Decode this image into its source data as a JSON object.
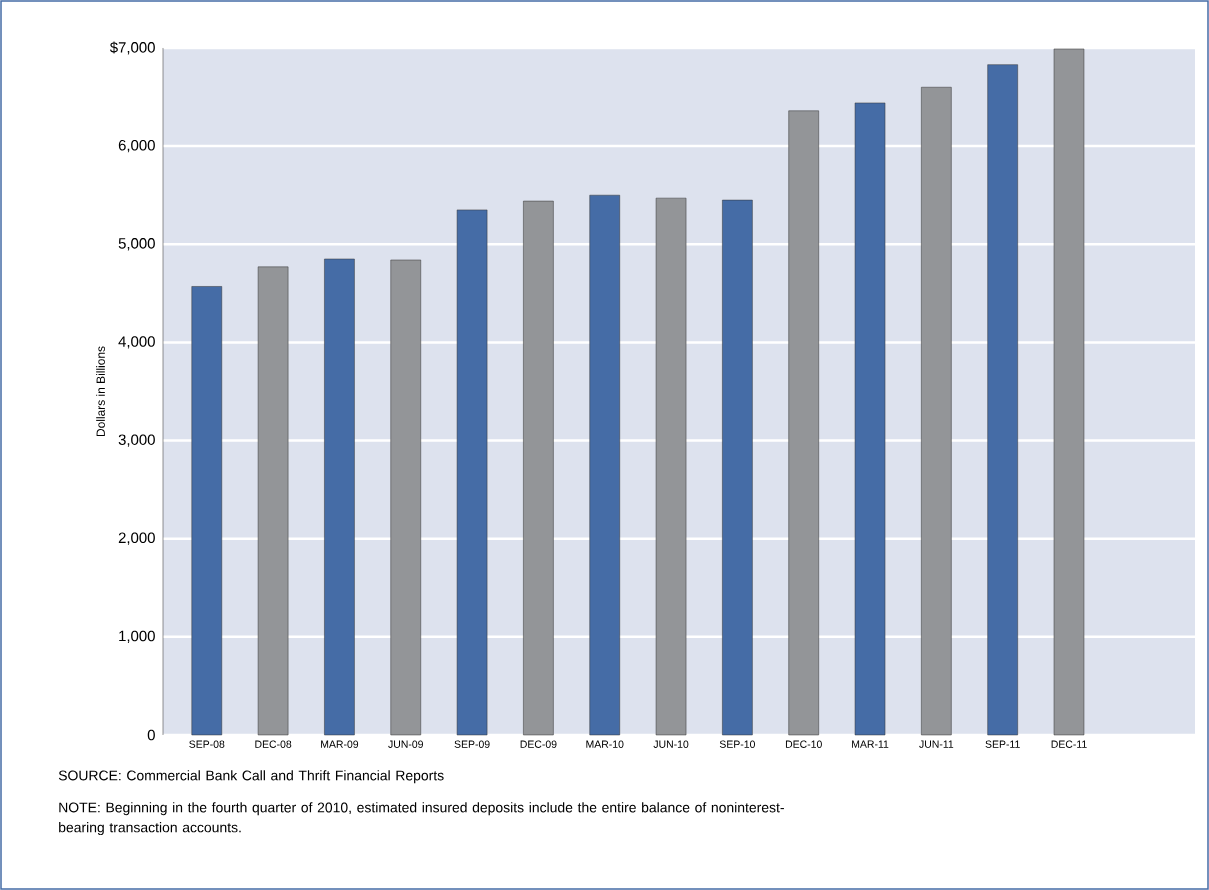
{
  "chart_data": {
    "type": "bar",
    "ylabel": "Dollars in Billions",
    "categories": [
      "SEP-08",
      "DEC-08",
      "MAR-09",
      "JUN-09",
      "SEP-09",
      "DEC-09",
      "MAR-10",
      "JUN-10",
      "SEP-10",
      "DEC-10",
      "MAR-11",
      "JUN-11",
      "SEP-11",
      "DEC-11"
    ],
    "values": [
      4570,
      4770,
      4850,
      4840,
      5350,
      5440,
      5500,
      5470,
      5450,
      6360,
      6440,
      6600,
      6830,
      6990
    ],
    "colors": [
      "#456ca6",
      "#939598",
      "#456ca6",
      "#939598",
      "#456ca6",
      "#939598",
      "#456ca6",
      "#939598",
      "#456ca6",
      "#939598",
      "#456ca6",
      "#939598",
      "#456ca6",
      "#939598"
    ],
    "ylim": [
      0,
      7000
    ],
    "yticks": [
      0,
      {
        "value": 1000,
        "label": "1,000"
      },
      {
        "value": 2000,
        "label": "2,000"
      },
      {
        "value": 3000,
        "label": "3,000"
      },
      {
        "value": 4000,
        "label": "4,000"
      },
      {
        "value": 5000,
        "label": "5,000"
      },
      {
        "value": 6000,
        "label": "6,000"
      },
      {
        "value": 7000,
        "label": "$7,000"
      }
    ],
    "grid": "y",
    "annotations": [
      "SOURCE: Commercial Bank Call and Thrift Financial Reports",
      "NOTE: Beginning in the fourth quarter of 2010, estimated insured deposits include the entire balance of noninterest-bearing transaction accounts."
    ]
  }
}
